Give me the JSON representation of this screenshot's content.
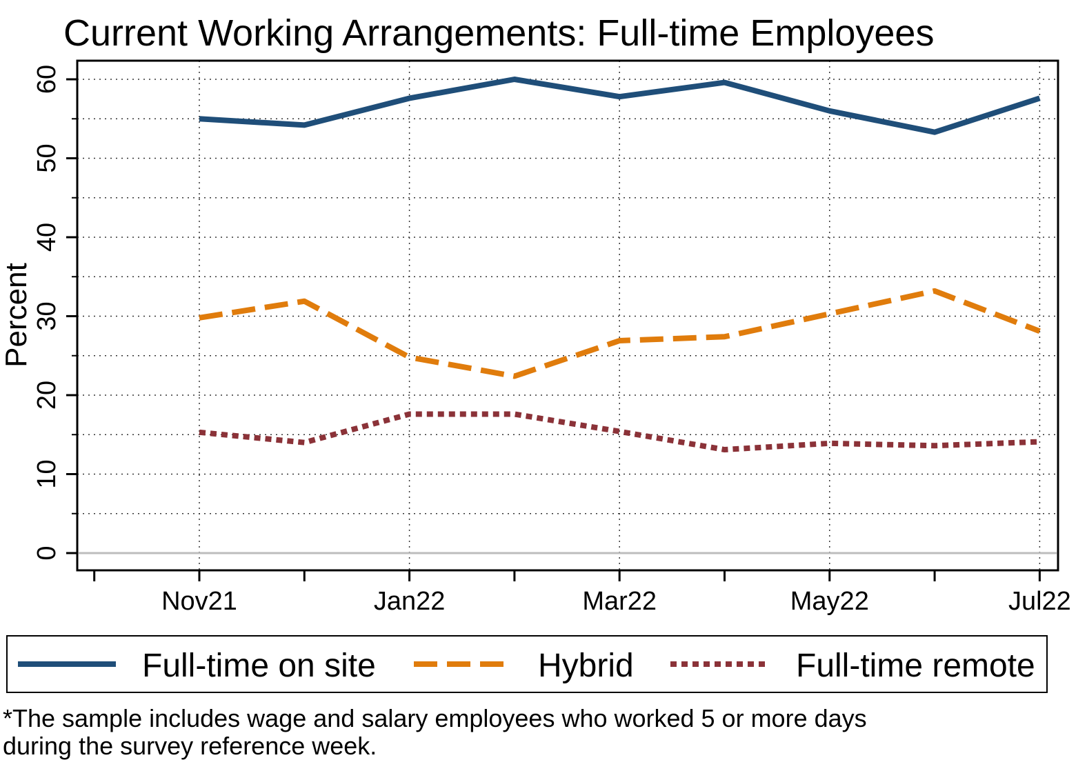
{
  "chart_data": {
    "type": "line",
    "title": "Current Working Arrangements: Full-time Employees",
    "ylabel": "Percent",
    "xlabel": "",
    "x": [
      "Nov21",
      "Dec21",
      "Jan22",
      "Feb22",
      "Mar22",
      "Apr22",
      "May22",
      "Jun22",
      "Jul22"
    ],
    "x_tick_labels": [
      "Nov21",
      "",
      "Jan22",
      "",
      "Mar22",
      "",
      "May22",
      "",
      "Jul22"
    ],
    "y_ticks": [
      0,
      10,
      20,
      30,
      40,
      50,
      60
    ],
    "ylim": [
      0,
      60
    ],
    "grid": true,
    "legend_position": "bottom",
    "series": [
      {
        "name": "Full-time on site",
        "color": "#1f4e79",
        "style": "solid",
        "values": [
          55.0,
          54.2,
          57.6,
          60.0,
          57.8,
          59.6,
          56.0,
          53.3,
          57.6
        ]
      },
      {
        "name": "Hybrid",
        "color": "#e07c0c",
        "style": "dashed",
        "values": [
          29.8,
          31.9,
          24.8,
          22.4,
          26.9,
          27.4,
          30.3,
          33.2,
          28.1
        ]
      },
      {
        "name": "Full-time remote",
        "color": "#8b3238",
        "style": "dotted",
        "values": [
          15.3,
          14.0,
          17.6,
          17.6,
          15.4,
          13.1,
          13.9,
          13.6,
          14.1
        ]
      }
    ]
  },
  "footnote": {
    "line1": "*The sample includes wage and salary employees who worked 5 or more days",
    "line2": "during the survey reference week."
  }
}
